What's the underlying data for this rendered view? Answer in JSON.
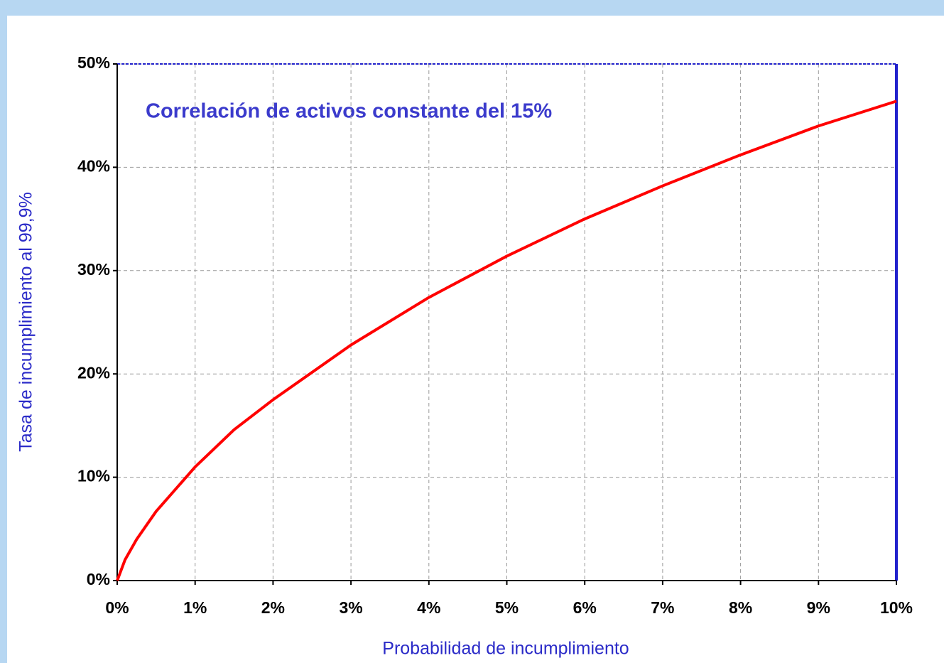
{
  "chart_data": {
    "type": "line",
    "annotation": "Correlación de activos constante del 15%",
    "x_label": "Probabilidad de incumplimiento",
    "y_label": "Tasa de incumplimiento al 99,9%",
    "x": [
      0,
      0.1,
      0.25,
      0.5,
      1,
      1.5,
      2,
      3,
      4,
      5,
      6,
      7,
      8,
      9,
      10
    ],
    "series": [
      {
        "color": "#ff0000",
        "values": [
          0,
          2.0,
          4.0,
          6.7,
          11.0,
          14.6,
          17.5,
          22.8,
          27.4,
          31.4,
          35.0,
          38.2,
          41.2,
          44.0,
          46.4
        ]
      }
    ],
    "xlim": [
      0,
      10
    ],
    "xticks": [
      {
        "value": 0,
        "label": "0%"
      },
      {
        "value": 1,
        "label": "1%"
      },
      {
        "value": 2,
        "label": "2%"
      },
      {
        "value": 3,
        "label": "3%"
      },
      {
        "value": 4,
        "label": "4%"
      },
      {
        "value": 5,
        "label": "5%"
      },
      {
        "value": 6,
        "label": "6%"
      },
      {
        "value": 7,
        "label": "7%"
      },
      {
        "value": 8,
        "label": "8%"
      },
      {
        "value": 9,
        "label": "9%"
      },
      {
        "value": 10,
        "label": "10%"
      }
    ],
    "ylim": [
      0,
      50
    ],
    "yticks": [
      {
        "value": 0,
        "label": "0%"
      },
      {
        "value": 10,
        "label": "10%"
      },
      {
        "value": 20,
        "label": "20%"
      },
      {
        "value": 30,
        "label": "30%"
      },
      {
        "value": 40,
        "label": "40%"
      },
      {
        "value": 50,
        "label": "50%"
      }
    ],
    "grid": true
  }
}
